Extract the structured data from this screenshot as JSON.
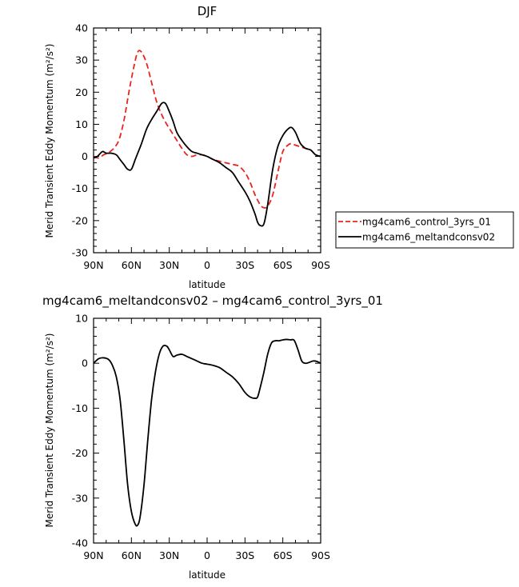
{
  "chart_data": [
    {
      "type": "line",
      "title": "DJF",
      "xlabel": "latitude",
      "ylabel": "Merid Transient Eddy Momentum  (m²/s²)",
      "x_ticks": [
        {
          "value": -90,
          "label": "90N"
        },
        {
          "value": -60,
          "label": "60N"
        },
        {
          "value": -30,
          "label": "30N"
        },
        {
          "value": 0,
          "label": "0"
        },
        {
          "value": 30,
          "label": "30S"
        },
        {
          "value": 60,
          "label": "60S"
        },
        {
          "value": 90,
          "label": "90S"
        }
      ],
      "xlim": [
        -90,
        90
      ],
      "ylim": [
        -30,
        40
      ],
      "y_ticks": [
        -30,
        -20,
        -10,
        0,
        10,
        20,
        30,
        40
      ],
      "legend_position": "right",
      "series": [
        {
          "name": "mg4cam6_control_3yrs_01",
          "color": "#e8241f",
          "dashed": true,
          "x": [
            -90,
            -86,
            -82,
            -78,
            -74,
            -70,
            -66,
            -62,
            -58,
            -55,
            -52,
            -48,
            -44,
            -40,
            -36,
            -32,
            -28,
            -24,
            -20,
            -16,
            -12,
            -8,
            -4,
            0,
            5,
            10,
            15,
            20,
            25,
            30,
            34,
            38,
            42,
            45,
            48,
            52,
            56,
            60,
            64,
            67,
            70,
            74,
            78,
            82,
            86,
            90
          ],
          "y": [
            0,
            -0.5,
            0.5,
            1.2,
            2.5,
            5,
            11,
            20,
            28,
            32.5,
            32.5,
            29,
            23,
            17,
            13,
            10,
            7.5,
            5,
            2.5,
            0.5,
            0,
            0.5,
            0.5,
            0,
            -1,
            -1.5,
            -2,
            -2.5,
            -3,
            -5,
            -8,
            -12,
            -15,
            -16,
            -15.5,
            -12,
            -5,
            1.5,
            3.5,
            4,
            3.5,
            3,
            2.5,
            2,
            0.5,
            0
          ]
        },
        {
          "name": "mg4cam6_meltandconsv02",
          "color": "#000000",
          "dashed": false,
          "x": [
            -90,
            -87,
            -83,
            -80,
            -76,
            -72,
            -69,
            -66,
            -63,
            -60,
            -57,
            -55,
            -52,
            -48,
            -44,
            -40,
            -36,
            -33,
            -30,
            -27,
            -24,
            -20,
            -16,
            -12,
            -8,
            -4,
            0,
            5,
            10,
            15,
            20,
            25,
            30,
            34,
            38,
            40,
            42,
            45,
            48,
            52,
            56,
            60,
            64,
            67,
            70,
            74,
            78,
            82,
            86,
            90
          ],
          "y": [
            -0.5,
            0,
            1.5,
            1,
            1,
            0.5,
            -1,
            -2.5,
            -4,
            -4,
            -1,
            1,
            4,
            8.5,
            11.5,
            14,
            16.5,
            16.5,
            14,
            11,
            7.5,
            5,
            3,
            1.5,
            1,
            0.5,
            0,
            -1,
            -2,
            -3.5,
            -5,
            -8,
            -11,
            -14,
            -18,
            -20.5,
            -21.5,
            -21,
            -15,
            -4,
            3,
            6.5,
            8.5,
            9,
            7.5,
            4,
            2.5,
            2,
            0.5,
            0
          ]
        }
      ]
    },
    {
      "type": "line",
      "title": "mg4cam6_meltandconsv02 – mg4cam6_control_3yrs_01",
      "xlabel": "latitude",
      "ylabel": "Merid Transient Eddy Momentum  (m²/s²)",
      "x_ticks": [
        {
          "value": -90,
          "label": "90N"
        },
        {
          "value": -60,
          "label": "60N"
        },
        {
          "value": -30,
          "label": "30N"
        },
        {
          "value": 0,
          "label": "0"
        },
        {
          "value": 30,
          "label": "30S"
        },
        {
          "value": 60,
          "label": "60S"
        },
        {
          "value": 90,
          "label": "90S"
        }
      ],
      "xlim": [
        -90,
        90
      ],
      "ylim": [
        -40,
        10
      ],
      "y_ticks": [
        -40,
        -30,
        -20,
        -10,
        0,
        10
      ],
      "series": [
        {
          "color": "#000000",
          "dashed": false,
          "x": [
            -90,
            -86,
            -82,
            -78,
            -75,
            -72,
            -69,
            -66,
            -63,
            -60,
            -57,
            -55,
            -53,
            -50,
            -47,
            -44,
            -41,
            -38,
            -35,
            -32,
            -30,
            -27,
            -24,
            -20,
            -16,
            -12,
            -8,
            -4,
            0,
            5,
            10,
            15,
            20,
            25,
            30,
            34,
            38,
            40,
            42,
            45,
            48,
            51,
            54,
            57,
            60,
            63,
            66,
            69,
            72,
            75,
            78,
            81,
            84,
            87,
            90
          ],
          "y": [
            0,
            1,
            1.2,
            0.8,
            -0.5,
            -3,
            -8,
            -17,
            -27,
            -33,
            -35.8,
            -36,
            -34,
            -27,
            -17,
            -8,
            -2,
            2,
            3.8,
            3.8,
            3,
            1.5,
            1.8,
            2,
            1.5,
            1,
            0.5,
            0,
            -0.2,
            -0.5,
            -1,
            -2,
            -3,
            -4.5,
            -6.5,
            -7.5,
            -7.8,
            -7.5,
            -5.5,
            -2,
            2,
            4.5,
            5,
            5,
            5.2,
            5.3,
            5.2,
            5.1,
            3,
            0.5,
            0,
            0.2,
            0.5,
            0.4,
            0
          ]
        }
      ]
    }
  ]
}
